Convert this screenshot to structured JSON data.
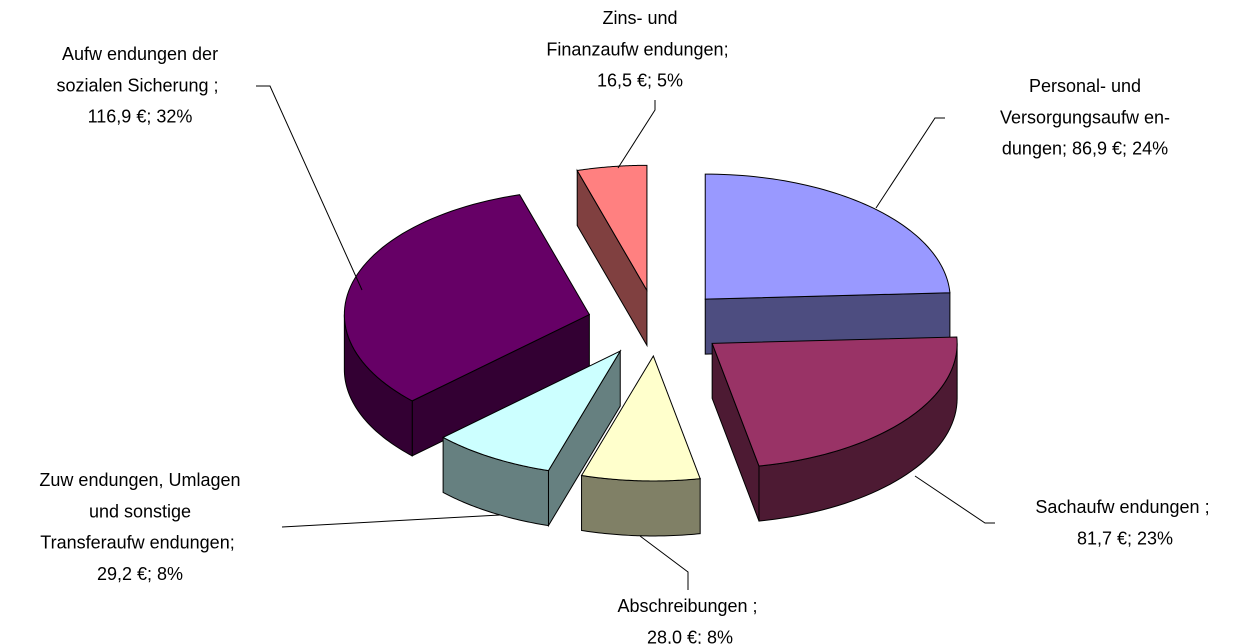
{
  "chart_data": {
    "type": "pie3d",
    "categories": [
      [
        "Personal- und",
        "Versorgungsaufw en-",
        "dungen"
      ],
      [
        "Sachaufw endungen "
      ],
      [
        "Abschreibungen "
      ],
      [
        "Zuw endungen, Umlagen",
        "und sonstige",
        "Transferaufw endungen"
      ],
      [
        "Aufw endungen der",
        "sozialen Sicherung "
      ],
      [
        "Zins- und",
        "Finanzaufw endungen"
      ]
    ],
    "values": [
      86.9,
      81.7,
      28.0,
      29.2,
      116.9,
      16.5
    ],
    "value_labels": [
      "86,9 €",
      "81,7 €",
      "28,0 €",
      "29,2 €",
      "116,9 €",
      "16,5 €"
    ],
    "percentages": [
      24,
      23,
      8,
      8,
      32,
      5
    ],
    "percent_labels": [
      "24%",
      "23%",
      "8%",
      "8%",
      "32%",
      "5%"
    ],
    "separator": "; ",
    "colors": [
      "#9999ff",
      "#993366",
      "#ffffcc",
      "#ccffff",
      "#660066",
      "#ff8080"
    ]
  }
}
